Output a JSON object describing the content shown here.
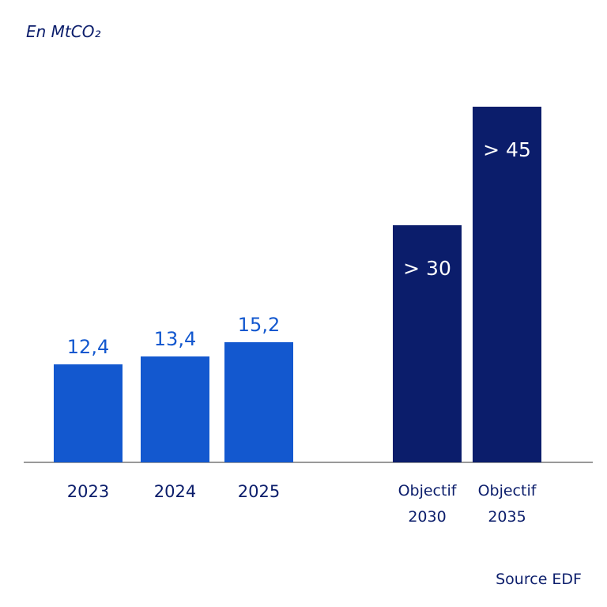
{
  "chart_data": {
    "type": "bar",
    "title": "En MtCO₂",
    "categories": [
      "2023",
      "2024",
      "2025",
      "Objectif 2030",
      "Objectif 2035"
    ],
    "values": [
      12.4,
      13.4,
      15.2,
      30,
      45
    ],
    "value_labels": [
      "12,4",
      "13,4",
      "15,2",
      "> 30",
      "> 45"
    ],
    "colors": [
      "#1358cf",
      "#1358cf",
      "#1358cf",
      "#0b1d6b",
      "#0b1d6b"
    ],
    "label_position": [
      "above",
      "above",
      "above",
      "inside",
      "inside"
    ],
    "source": "Source EDF"
  }
}
